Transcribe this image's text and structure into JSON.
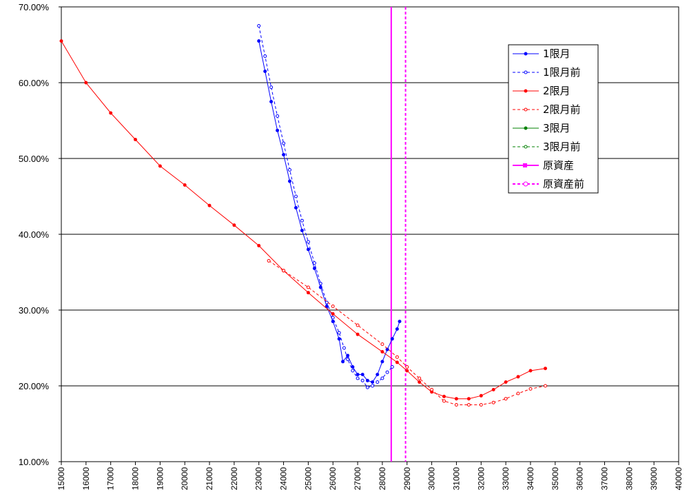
{
  "chart_data": {
    "type": "line",
    "title": "",
    "xlabel": "",
    "ylabel": "",
    "xlim": [
      15000,
      40000
    ],
    "ylim": [
      0.1,
      0.7
    ],
    "x_ticks": [
      "15000",
      "16000",
      "17000",
      "18000",
      "19000",
      "20000",
      "21000",
      "22000",
      "23000",
      "24000",
      "25000",
      "26000",
      "27000",
      "28000",
      "29000",
      "30000",
      "31000",
      "32000",
      "33000",
      "34000",
      "35000",
      "36000",
      "37000",
      "38000",
      "39000",
      "40000"
    ],
    "y_ticks": [
      "10.00%",
      "20.00%",
      "30.00%",
      "40.00%",
      "50.00%",
      "60.00%",
      "70.00%"
    ],
    "grid": "horizontal",
    "legend_position": "right",
    "series": [
      {
        "name": "1限月",
        "color": "#0000ff",
        "style": "solid",
        "marker": "filled",
        "points": [
          [
            23000,
            0.655
          ],
          [
            23250,
            0.615
          ],
          [
            23500,
            0.575
          ],
          [
            23750,
            0.537
          ],
          [
            24000,
            0.505
          ],
          [
            24250,
            0.47
          ],
          [
            24500,
            0.435
          ],
          [
            24750,
            0.405
          ],
          [
            25000,
            0.38
          ],
          [
            25250,
            0.355
          ],
          [
            25500,
            0.33
          ],
          [
            25750,
            0.305
          ],
          [
            26000,
            0.285
          ],
          [
            26250,
            0.262
          ],
          [
            26400,
            0.232
          ],
          [
            26600,
            0.24
          ],
          [
            26800,
            0.225
          ],
          [
            27000,
            0.215
          ],
          [
            27200,
            0.215
          ],
          [
            27400,
            0.207
          ],
          [
            27600,
            0.205
          ],
          [
            27800,
            0.215
          ],
          [
            28000,
            0.232
          ],
          [
            28200,
            0.248
          ],
          [
            28400,
            0.262
          ],
          [
            28600,
            0.275
          ],
          [
            28700,
            0.285
          ]
        ]
      },
      {
        "name": "1限月前",
        "color": "#0000ff",
        "style": "dashed",
        "marker": "open",
        "points": [
          [
            23000,
            0.675
          ],
          [
            23250,
            0.635
          ],
          [
            23500,
            0.594
          ],
          [
            23750,
            0.556
          ],
          [
            24000,
            0.52
          ],
          [
            24250,
            0.485
          ],
          [
            24500,
            0.45
          ],
          [
            24750,
            0.418
          ],
          [
            25000,
            0.39
          ],
          [
            25250,
            0.362
          ],
          [
            25500,
            0.335
          ],
          [
            25750,
            0.31
          ],
          [
            26000,
            0.29
          ],
          [
            26250,
            0.27
          ],
          [
            26450,
            0.25
          ],
          [
            26600,
            0.235
          ],
          [
            26800,
            0.22
          ],
          [
            27000,
            0.21
          ],
          [
            27200,
            0.207
          ],
          [
            27400,
            0.198
          ],
          [
            27600,
            0.2
          ],
          [
            27800,
            0.205
          ],
          [
            28000,
            0.21
          ],
          [
            28200,
            0.218
          ],
          [
            28400,
            0.225
          ]
        ]
      },
      {
        "name": "2限月",
        "color": "#ff0000",
        "style": "solid",
        "marker": "filled",
        "points": [
          [
            15000,
            0.655
          ],
          [
            16000,
            0.6
          ],
          [
            17000,
            0.56
          ],
          [
            18000,
            0.525
          ],
          [
            19000,
            0.49
          ],
          [
            20000,
            0.465
          ],
          [
            21000,
            0.438
          ],
          [
            22000,
            0.412
          ],
          [
            23000,
            0.385
          ],
          [
            24000,
            0.352
          ],
          [
            25000,
            0.323
          ],
          [
            26000,
            0.295
          ],
          [
            27000,
            0.268
          ],
          [
            28000,
            0.245
          ],
          [
            28600,
            0.231
          ],
          [
            29000,
            0.22
          ],
          [
            29500,
            0.205
          ],
          [
            30000,
            0.192
          ],
          [
            30500,
            0.186
          ],
          [
            31000,
            0.183
          ],
          [
            31500,
            0.183
          ],
          [
            32000,
            0.187
          ],
          [
            32500,
            0.195
          ],
          [
            33000,
            0.205
          ],
          [
            33500,
            0.212
          ],
          [
            34000,
            0.22
          ],
          [
            34600,
            0.223
          ]
        ]
      },
      {
        "name": "2限月前",
        "color": "#ff0000",
        "style": "dashed",
        "marker": "open",
        "points": [
          [
            23400,
            0.365
          ],
          [
            24000,
            0.352
          ],
          [
            25000,
            0.33
          ],
          [
            26000,
            0.305
          ],
          [
            27000,
            0.28
          ],
          [
            28000,
            0.255
          ],
          [
            28600,
            0.238
          ],
          [
            29000,
            0.225
          ],
          [
            29500,
            0.21
          ],
          [
            30000,
            0.195
          ],
          [
            30500,
            0.18
          ],
          [
            31000,
            0.175
          ],
          [
            31500,
            0.175
          ],
          [
            32000,
            0.175
          ],
          [
            32500,
            0.178
          ],
          [
            33000,
            0.183
          ],
          [
            33500,
            0.19
          ],
          [
            34000,
            0.196
          ],
          [
            34600,
            0.2
          ]
        ]
      },
      {
        "name": "3限月",
        "color": "#008000",
        "style": "solid",
        "marker": "filled",
        "points": []
      },
      {
        "name": "3限月前",
        "color": "#008000",
        "style": "dashed",
        "marker": "open",
        "points": []
      },
      {
        "name": "原資産",
        "color": "#ff00ff",
        "style": "solid",
        "marker": "filled",
        "vline": 28360
      },
      {
        "name": "原資産前",
        "color": "#ff00ff",
        "style": "dashed",
        "marker": "open",
        "vline": 28940
      }
    ]
  }
}
